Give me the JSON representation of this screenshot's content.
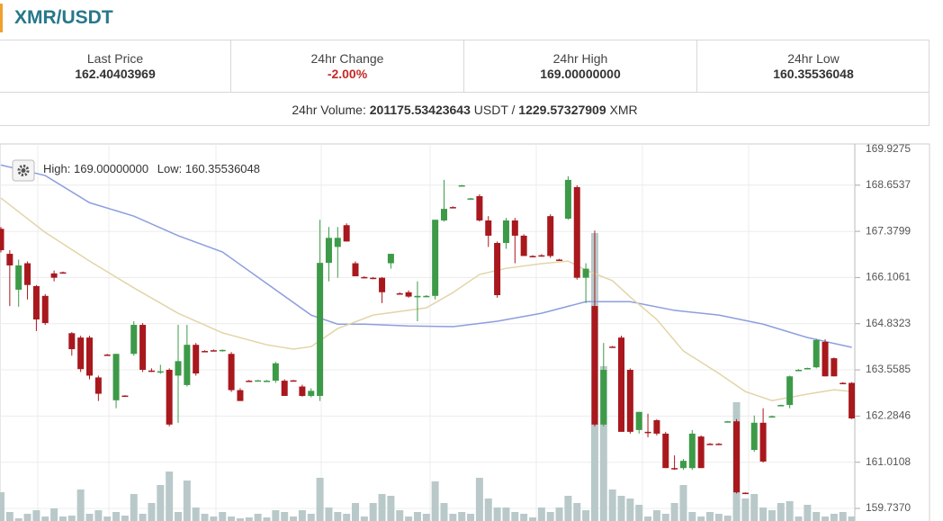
{
  "header": {
    "title": "XMR/USDT"
  },
  "stats": {
    "last_price_label": "Last Price",
    "last_price": "162.40403969",
    "change_label": "24hr Change",
    "change": "-2.00%",
    "high_label": "24hr High",
    "high": "169.00000000",
    "low_label": "24hr Low",
    "low": "160.35536048",
    "volume_label": "24hr Volume:",
    "volume_usdt": "201175.53423643",
    "usdt_unit": "USDT",
    "separator": "/",
    "volume_xmr": "1229.57327909",
    "xmr_unit": "XMR"
  },
  "chart_data": {
    "type": "candlestick",
    "legend": {
      "high_label": "High:",
      "high_value": "169.00000000",
      "low_label": "Low:",
      "low_value": "160.35536048"
    },
    "up_color": "#3d9a48",
    "down_color": "#a8181d",
    "volume_color": "#b9c9c9",
    "grid": true,
    "ylim": [
      159.39,
      169.79
    ],
    "yticks": [
      {
        "value": 159.737,
        "label": "159.7370"
      },
      161.0108,
      162.2846,
      163.5585,
      164.8323,
      166.1061,
      167.3799,
      168.6537,
      169.9275
    ],
    "ohlc": [
      [
        167.45,
        167.5,
        166.8,
        166.86
      ],
      [
        166.76,
        166.86,
        165.32,
        166.44
      ],
      [
        165.77,
        166.6,
        165.3,
        166.44
      ],
      [
        166.5,
        166.55,
        165.5,
        165.9
      ],
      [
        165.87,
        165.9,
        164.63,
        164.95
      ],
      [
        165.6,
        165.65,
        164.8,
        164.85
      ],
      [
        166.22,
        166.3,
        166.0,
        166.1
      ],
      [
        166.25,
        166.27,
        166.23,
        166.24
      ],
      [
        164.57,
        164.6,
        163.95,
        164.13
      ],
      [
        164.45,
        164.5,
        163.5,
        163.58
      ],
      [
        164.45,
        164.5,
        163.3,
        163.4
      ],
      [
        163.35,
        163.4,
        162.7,
        162.9
      ],
      [
        163.98,
        164.0,
        163.96,
        163.97
      ],
      [
        162.72,
        164.0,
        162.5,
        164.0
      ],
      [
        162.85,
        162.86,
        162.82,
        162.84
      ],
      [
        164.0,
        164.9,
        163.95,
        164.8
      ],
      [
        164.8,
        164.85,
        163.5,
        163.56
      ],
      [
        163.54,
        163.6,
        163.5,
        163.53
      ],
      [
        163.5,
        163.7,
        163.45,
        163.52
      ],
      [
        163.56,
        163.6,
        162.0,
        162.05
      ],
      [
        163.4,
        164.8,
        162.1,
        163.8
      ],
      [
        163.14,
        164.8,
        163.1,
        164.25
      ],
      [
        164.25,
        164.3,
        163.4,
        163.46
      ],
      [
        164.08,
        164.1,
        164.06,
        164.08
      ],
      [
        164.1,
        164.12,
        164.08,
        164.1
      ],
      [
        164.08,
        164.12,
        164.06,
        164.11
      ],
      [
        164.0,
        164.05,
        162.95,
        163.0
      ],
      [
        163.0,
        163.05,
        162.7,
        162.7
      ],
      [
        163.26,
        163.28,
        163.24,
        163.26
      ],
      [
        163.26,
        163.28,
        163.24,
        163.27
      ],
      [
        163.25,
        163.28,
        163.24,
        163.26
      ],
      [
        163.26,
        163.78,
        163.2,
        163.74
      ],
      [
        163.26,
        163.3,
        162.84,
        162.84
      ],
      [
        163.27,
        163.28,
        163.25,
        163.26
      ],
      [
        163.1,
        163.15,
        162.82,
        162.84
      ],
      [
        162.84,
        163.05,
        162.8,
        162.98
      ],
      [
        162.84,
        167.7,
        162.7,
        166.51
      ],
      [
        166.51,
        167.5,
        166.0,
        167.2
      ],
      [
        166.95,
        167.5,
        166.1,
        167.2
      ],
      [
        167.55,
        167.6,
        167.1,
        167.1
      ],
      [
        166.5,
        166.55,
        166.14,
        166.14
      ],
      [
        166.12,
        166.14,
        166.08,
        166.1
      ],
      [
        166.1,
        166.12,
        166.06,
        166.08
      ],
      [
        166.1,
        166.12,
        165.4,
        165.7
      ],
      [
        166.5,
        166.76,
        166.35,
        166.76
      ],
      [
        165.67,
        165.7,
        165.64,
        165.66
      ],
      [
        165.7,
        165.75,
        165.55,
        165.58
      ],
      [
        165.56,
        166.0,
        164.9,
        165.6
      ],
      [
        165.58,
        165.62,
        165.56,
        165.6
      ],
      [
        165.6,
        167.7,
        165.5,
        167.7
      ],
      [
        167.68,
        168.8,
        167.65,
        168.0
      ],
      [
        168.05,
        168.07,
        168.03,
        168.04
      ],
      [
        168.64,
        168.66,
        168.62,
        168.65
      ],
      [
        168.28,
        168.3,
        168.27,
        168.29
      ],
      [
        168.35,
        168.4,
        167.65,
        167.68
      ],
      [
        167.68,
        167.8,
        166.95,
        167.26
      ],
      [
        167.06,
        167.1,
        165.55,
        165.62
      ],
      [
        167.06,
        167.75,
        166.9,
        167.68
      ],
      [
        167.68,
        167.75,
        166.5,
        167.26
      ],
      [
        167.26,
        167.3,
        166.7,
        166.7
      ],
      [
        166.7,
        166.72,
        166.68,
        166.69
      ],
      [
        166.72,
        166.75,
        166.68,
        166.7
      ],
      [
        167.8,
        167.85,
        166.65,
        166.7
      ],
      [
        166.6,
        166.62,
        166.58,
        166.59
      ],
      [
        167.73,
        168.9,
        167.7,
        168.8
      ],
      [
        168.6,
        168.65,
        166.05,
        166.1
      ],
      [
        166.1,
        166.5,
        165.4,
        166.35
      ],
      [
        165.32,
        167.4,
        162.0,
        162.05
      ],
      [
        162.05,
        164.3,
        162.0,
        163.56
      ],
      [
        164.2,
        164.22,
        164.18,
        164.19
      ],
      [
        164.45,
        164.5,
        161.85,
        161.85
      ],
      [
        163.56,
        163.6,
        161.8,
        161.85
      ],
      [
        161.9,
        162.4,
        161.8,
        162.4
      ],
      [
        161.85,
        162.35,
        161.7,
        161.84
      ],
      [
        162.17,
        162.2,
        161.75,
        161.8
      ],
      [
        161.8,
        161.85,
        160.85,
        160.85
      ],
      [
        160.85,
        161.2,
        160.8,
        160.84
      ],
      [
        160.85,
        161.1,
        160.8,
        161.05
      ],
      [
        160.85,
        161.9,
        160.8,
        161.8
      ],
      [
        161.72,
        161.75,
        160.85,
        160.85
      ],
      [
        161.52,
        161.54,
        161.5,
        161.52
      ],
      [
        161.52,
        161.54,
        161.5,
        161.51
      ],
      [
        162.13,
        162.15,
        162.12,
        162.14
      ],
      [
        162.14,
        162.2,
        160.15,
        160.18
      ],
      [
        160.17,
        160.18,
        160.14,
        160.16
      ],
      [
        161.35,
        162.3,
        161.3,
        162.1
      ],
      [
        162.1,
        162.5,
        161.0,
        161.03
      ],
      [
        162.27,
        162.3,
        162.26,
        162.28
      ],
      [
        162.58,
        162.6,
        162.57,
        162.59
      ],
      [
        162.59,
        163.4,
        162.5,
        163.38
      ],
      [
        163.55,
        163.58,
        163.54,
        163.56
      ],
      [
        163.6,
        163.62,
        163.58,
        163.61
      ],
      [
        163.63,
        164.42,
        163.6,
        164.38
      ],
      [
        164.33,
        164.4,
        163.38,
        163.38
      ],
      [
        163.88,
        163.9,
        163.38,
        163.38
      ],
      [
        163.2,
        163.22,
        163.18,
        163.2
      ],
      [
        163.2,
        163.22,
        162.2,
        162.22
      ]
    ],
    "volume_lim": [
      0,
      320
    ],
    "volume": [
      32,
      10,
      3,
      8,
      12,
      5,
      14,
      5,
      6,
      35,
      8,
      12,
      5,
      10,
      6,
      30,
      8,
      20,
      40,
      55,
      10,
      45,
      15,
      8,
      5,
      10,
      5,
      3,
      4,
      8,
      4,
      12,
      10,
      5,
      12,
      8,
      48,
      15,
      10,
      8,
      20,
      5,
      20,
      30,
      28,
      12,
      5,
      10,
      8,
      44,
      20,
      8,
      10,
      8,
      48,
      25,
      15,
      15,
      10,
      8,
      4,
      15,
      10,
      15,
      28,
      20,
      12,
      320,
      172,
      35,
      28,
      25,
      18,
      5,
      12,
      8,
      20,
      40,
      10,
      5,
      10,
      8,
      6,
      132,
      25,
      30,
      15,
      12,
      20,
      22,
      5,
      18,
      10,
      5,
      8,
      10,
      5
    ],
    "series": [
      {
        "color": "#8c9ede",
        "x": [
          0,
          5,
          10,
          15,
          20,
          25,
          30,
          35,
          38,
          41,
          46,
          51,
          56,
          61,
          66,
          71,
          76,
          81,
          86,
          91,
          96
        ],
        "values": [
          169.21,
          168.92,
          168.17,
          167.8,
          167.26,
          166.81,
          165.94,
          165.07,
          164.82,
          164.82,
          164.77,
          164.75,
          164.9,
          165.12,
          165.44,
          165.44,
          165.2,
          165.07,
          164.82,
          164.45,
          164.18
        ]
      },
      {
        "color": "#e3d4a8",
        "x": [
          0,
          5,
          10,
          15,
          20,
          25,
          30,
          33,
          35,
          38,
          42,
          48,
          51,
          54,
          57,
          61,
          64,
          66,
          69,
          71,
          74,
          77,
          81,
          84,
          87,
          91,
          94,
          96
        ],
        "values": [
          168.3,
          167.35,
          166.56,
          165.82,
          165.12,
          164.58,
          164.25,
          164.13,
          164.2,
          164.7,
          165.07,
          165.27,
          165.69,
          166.19,
          166.36,
          166.49,
          166.56,
          166.31,
          166.02,
          165.57,
          164.95,
          164.08,
          163.46,
          162.96,
          162.71,
          162.89,
          163.01,
          162.96
        ]
      }
    ]
  }
}
